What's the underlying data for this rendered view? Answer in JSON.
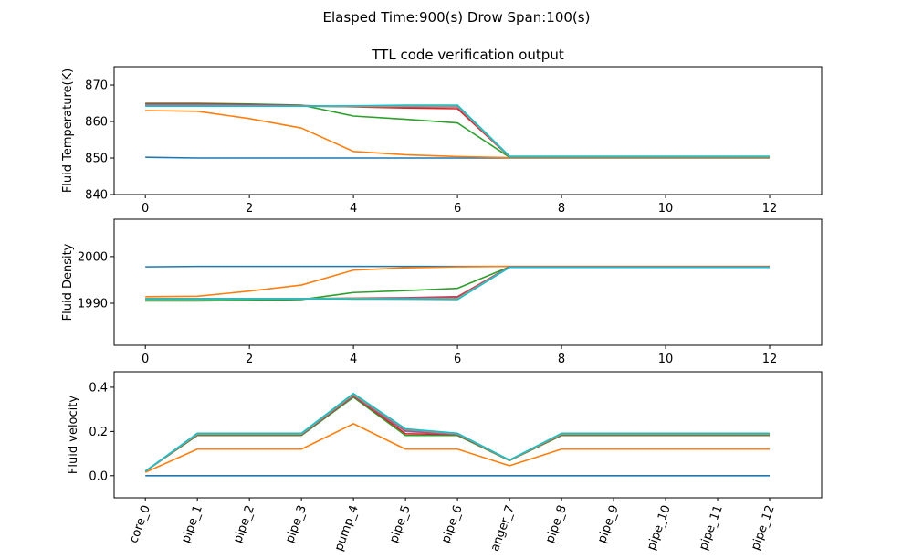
{
  "figure": {
    "suptitle": "Elasped Time:900(s)   Drow Span:100(s)",
    "colors": [
      "#1f77b4",
      "#ff7f0e",
      "#2ca02c",
      "#d62728",
      "#9467bd",
      "#8c564b",
      "#e377c2",
      "#7f7f7f",
      "#bcbd22",
      "#17becf"
    ]
  },
  "chart_data": [
    {
      "type": "line",
      "title": "TTL code verification output",
      "xlabel": "",
      "ylabel": "Fluid Temperature(K)",
      "xlim": [
        -0.6,
        13.0
      ],
      "ylim": [
        840,
        875
      ],
      "xticks": [
        0,
        2,
        4,
        6,
        8,
        10,
        12
      ],
      "xticklabels": [
        "0",
        "2",
        "4",
        "6",
        "8",
        "10",
        "12"
      ],
      "yticks": [
        840,
        850,
        860,
        870
      ],
      "yticklabels": [
        "840",
        "850",
        "860",
        "870"
      ],
      "grid": false,
      "x": [
        0,
        1,
        2,
        3,
        4,
        5,
        6,
        7,
        8,
        9,
        10,
        11,
        12
      ],
      "series": [
        {
          "values": [
            850.2,
            850.0,
            850.0,
            850.0,
            850.0,
            850.0,
            850.0,
            850.0,
            850.0,
            850.0,
            850.0,
            850.0,
            850.0
          ]
        },
        {
          "values": [
            863.0,
            862.8,
            860.8,
            858.2,
            851.8,
            850.9,
            850.4,
            850.1,
            850.1,
            850.1,
            850.1,
            850.1,
            850.1
          ]
        },
        {
          "values": [
            865.0,
            865.0,
            864.8,
            864.5,
            861.5,
            860.6,
            859.6,
            850.2,
            850.2,
            850.2,
            850.2,
            850.2,
            850.2
          ]
        },
        {
          "values": [
            864.8,
            864.8,
            864.6,
            864.4,
            864.0,
            863.7,
            863.5,
            850.3,
            850.3,
            850.3,
            850.3,
            850.3,
            850.3
          ]
        },
        {
          "values": [
            864.6,
            864.6,
            864.5,
            864.3,
            864.1,
            864.0,
            864.0,
            850.3,
            850.3,
            850.3,
            850.3,
            850.3,
            850.3
          ]
        },
        {
          "values": [
            864.5,
            864.5,
            864.4,
            864.2,
            864.1,
            864.1,
            864.1,
            850.4,
            850.4,
            850.4,
            850.4,
            850.4,
            850.4
          ]
        },
        {
          "values": [
            864.4,
            864.4,
            864.3,
            864.2,
            864.1,
            864.2,
            864.2,
            850.4,
            850.4,
            850.4,
            850.4,
            850.4,
            850.4
          ]
        },
        {
          "values": [
            864.3,
            864.3,
            864.2,
            864.2,
            864.2,
            864.3,
            864.3,
            850.4,
            850.4,
            850.4,
            850.4,
            850.4,
            850.4
          ]
        },
        {
          "values": [
            864.2,
            864.2,
            864.2,
            864.2,
            864.2,
            864.4,
            864.4,
            850.4,
            850.4,
            850.4,
            850.4,
            850.4,
            850.4
          ]
        },
        {
          "values": [
            864.2,
            864.2,
            864.2,
            864.2,
            864.3,
            864.5,
            864.5,
            850.5,
            850.5,
            850.5,
            850.5,
            850.5,
            850.5
          ]
        }
      ]
    },
    {
      "type": "line",
      "title": "",
      "xlabel": "",
      "ylabel": "Fluid Density",
      "xlim": [
        -0.6,
        13.0
      ],
      "ylim": [
        1981,
        2008
      ],
      "xticks": [
        0,
        2,
        4,
        6,
        8,
        10,
        12
      ],
      "xticklabels": [
        "0",
        "2",
        "4",
        "6",
        "8",
        "10",
        "12"
      ],
      "yticks": [
        1990,
        2000
      ],
      "yticklabels": [
        "1990",
        "2000"
      ],
      "grid": false,
      "x": [
        0,
        1,
        2,
        3,
        4,
        5,
        6,
        7,
        8,
        9,
        10,
        11,
        12
      ],
      "series": [
        {
          "values": [
            1997.8,
            1997.9,
            1997.9,
            1997.9,
            1997.9,
            1997.9,
            1997.9,
            1997.9,
            1997.9,
            1997.9,
            1997.9,
            1997.9,
            1997.9
          ]
        },
        {
          "values": [
            1991.4,
            1991.5,
            1992.6,
            1993.9,
            1997.1,
            1997.6,
            1997.8,
            1997.9,
            1997.9,
            1997.9,
            1997.9,
            1997.9,
            1997.9
          ]
        },
        {
          "values": [
            1990.5,
            1990.5,
            1990.6,
            1990.8,
            1992.3,
            1992.7,
            1993.2,
            1997.8,
            1997.8,
            1997.8,
            1997.8,
            1997.8,
            1997.8
          ]
        },
        {
          "values": [
            1990.9,
            1990.9,
            1991.0,
            1991.0,
            1991.1,
            1991.2,
            1991.4,
            1997.8,
            1997.8,
            1997.8,
            1997.8,
            1997.8,
            1997.8
          ]
        },
        {
          "values": [
            1990.9,
            1990.9,
            1990.9,
            1991.0,
            1991.0,
            1991.1,
            1991.2,
            1997.8,
            1997.8,
            1997.8,
            1997.8,
            1997.8,
            1997.8
          ]
        },
        {
          "values": [
            1991.0,
            1991.0,
            1991.0,
            1991.0,
            1991.0,
            1991.0,
            1991.1,
            1997.7,
            1997.7,
            1997.7,
            1997.7,
            1997.7,
            1997.7
          ]
        },
        {
          "values": [
            1991.0,
            1991.0,
            1991.0,
            1991.0,
            1991.0,
            1991.0,
            1991.0,
            1997.7,
            1997.7,
            1997.7,
            1997.7,
            1997.7,
            1997.7
          ]
        },
        {
          "values": [
            1991.0,
            1991.0,
            1991.0,
            1991.0,
            1991.0,
            1991.0,
            1990.9,
            1997.7,
            1997.7,
            1997.7,
            1997.7,
            1997.7,
            1997.7
          ]
        },
        {
          "values": [
            1991.0,
            1991.0,
            1991.0,
            1991.0,
            1991.0,
            1990.9,
            1990.9,
            1997.7,
            1997.7,
            1997.7,
            1997.7,
            1997.7,
            1997.7
          ]
        },
        {
          "values": [
            1991.0,
            1991.0,
            1991.0,
            1991.0,
            1990.9,
            1990.9,
            1990.8,
            1997.7,
            1997.7,
            1997.7,
            1997.7,
            1997.7,
            1997.7
          ]
        }
      ]
    },
    {
      "type": "line",
      "title": "",
      "xlabel": "",
      "ylabel": "Fluid velocity",
      "xlim": [
        -0.6,
        13.0
      ],
      "ylim": [
        -0.1,
        0.47
      ],
      "xticks": [
        0,
        1,
        2,
        3,
        4,
        5,
        6,
        7,
        8,
        9,
        10,
        11,
        12
      ],
      "xticklabels": [
        "core_0",
        "pipe_1",
        "pipe_2",
        "pipe_3",
        "pump_4",
        "pipe_5",
        "pipe_6",
        "anger_7",
        "pipe_8",
        "pipe_9",
        "pipe_10",
        "pipe_11",
        "pipe_12"
      ],
      "yticks": [
        0.0,
        0.2,
        0.4
      ],
      "yticklabels": [
        "0.0",
        "0.2",
        "0.4"
      ],
      "grid": false,
      "x": [
        0,
        1,
        2,
        3,
        4,
        5,
        6,
        7,
        8,
        9,
        10,
        11,
        12
      ],
      "series": [
        {
          "values": [
            0.0,
            0.0,
            0.0,
            0.0,
            0.0,
            0.0,
            0.0,
            0.0,
            0.0,
            0.0,
            0.0,
            0.0,
            0.0
          ]
        },
        {
          "values": [
            0.015,
            0.12,
            0.12,
            0.12,
            0.235,
            0.12,
            0.12,
            0.045,
            0.12,
            0.12,
            0.12,
            0.12,
            0.12
          ]
        },
        {
          "values": [
            0.02,
            0.182,
            0.182,
            0.182,
            0.355,
            0.182,
            0.182,
            0.068,
            0.182,
            0.182,
            0.182,
            0.182,
            0.182
          ]
        },
        {
          "values": [
            0.02,
            0.185,
            0.185,
            0.185,
            0.36,
            0.19,
            0.186,
            0.069,
            0.185,
            0.185,
            0.185,
            0.185,
            0.185
          ]
        },
        {
          "values": [
            0.02,
            0.186,
            0.186,
            0.186,
            0.362,
            0.2,
            0.187,
            0.069,
            0.186,
            0.186,
            0.186,
            0.186,
            0.186
          ]
        },
        {
          "values": [
            0.02,
            0.187,
            0.187,
            0.187,
            0.364,
            0.205,
            0.188,
            0.069,
            0.187,
            0.187,
            0.187,
            0.187,
            0.187
          ]
        },
        {
          "values": [
            0.02,
            0.188,
            0.188,
            0.188,
            0.366,
            0.208,
            0.189,
            0.07,
            0.188,
            0.188,
            0.188,
            0.188,
            0.188
          ]
        },
        {
          "values": [
            0.02,
            0.189,
            0.189,
            0.189,
            0.368,
            0.21,
            0.19,
            0.07,
            0.189,
            0.189,
            0.189,
            0.189,
            0.189
          ]
        },
        {
          "values": [
            0.02,
            0.19,
            0.19,
            0.19,
            0.37,
            0.211,
            0.191,
            0.07,
            0.19,
            0.19,
            0.19,
            0.19,
            0.19
          ]
        },
        {
          "values": [
            0.02,
            0.192,
            0.192,
            0.192,
            0.372,
            0.212,
            0.192,
            0.071,
            0.192,
            0.192,
            0.192,
            0.192,
            0.192
          ]
        }
      ]
    }
  ]
}
